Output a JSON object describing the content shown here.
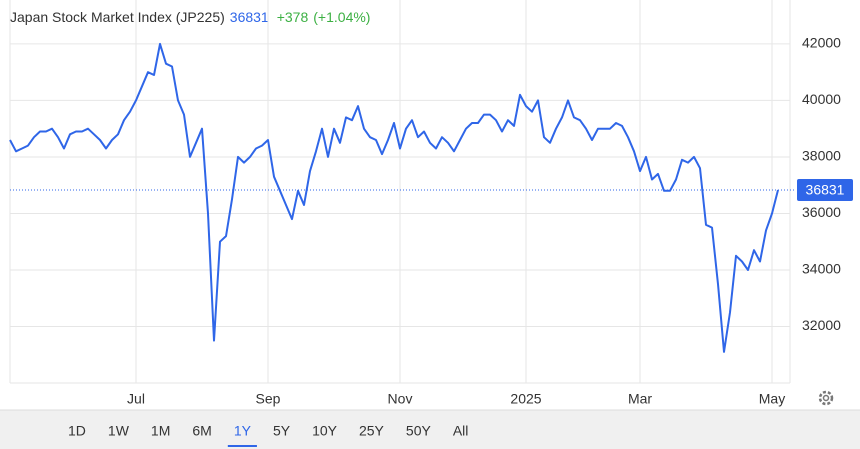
{
  "chart_data": {
    "type": "line",
    "title": "Japan Stock Market Index (JP225)",
    "last_value": 36831,
    "change": "+378",
    "change_percent": "(+1.04%)",
    "categories": [
      null,
      null,
      null,
      null,
      null,
      null,
      null,
      null,
      null,
      null,
      null,
      null,
      null,
      null,
      null,
      null,
      null,
      null,
      null,
      null,
      null,
      "Jul",
      null,
      null,
      null,
      null,
      null,
      null,
      null,
      null,
      null,
      null,
      null,
      null,
      null,
      null,
      null,
      null,
      null,
      null,
      null,
      null,
      null,
      "Sep",
      null,
      null,
      null,
      null,
      null,
      null,
      null,
      null,
      null,
      null,
      null,
      null,
      null,
      null,
      null,
      null,
      null,
      null,
      null,
      null,
      null,
      "Nov",
      null,
      null,
      null,
      null,
      null,
      null,
      null,
      null,
      null,
      null,
      null,
      null,
      null,
      null,
      null,
      null,
      null,
      null,
      null,
      null,
      "2025",
      null,
      null,
      null,
      null,
      null,
      null,
      null,
      null,
      null,
      null,
      null,
      null,
      null,
      null,
      null,
      null,
      null,
      null,
      "Mar",
      null,
      null,
      null,
      null,
      null,
      null,
      null,
      null,
      null,
      null,
      null,
      null,
      null,
      null,
      null,
      null,
      null,
      null,
      null,
      null,
      null,
      "May",
      null
    ],
    "series": [
      {
        "name": "JP225",
        "color": "#2f66e8",
        "values": [
          38600,
          38200,
          38300,
          38400,
          38700,
          38900,
          38900,
          39000,
          38700,
          38300,
          38800,
          38900,
          38900,
          39000,
          38800,
          38600,
          38300,
          38600,
          38800,
          39300,
          39600,
          40000,
          40500,
          41000,
          40900,
          42000,
          41300,
          41200,
          40000,
          39500,
          38000,
          38500,
          39000,
          36000,
          31500,
          35000,
          35200,
          36500,
          38000,
          37800,
          38000,
          38300,
          38400,
          38600,
          37300,
          36800,
          36300,
          35800,
          36800,
          36300,
          37500,
          38200,
          39000,
          38000,
          39000,
          38500,
          39400,
          39300,
          39800,
          39000,
          38700,
          38600,
          38100,
          38600,
          39200,
          38300,
          39000,
          39300,
          38700,
          38900,
          38500,
          38300,
          38700,
          38500,
          38200,
          38600,
          39000,
          39200,
          39200,
          39500,
          39500,
          39300,
          38900,
          39300,
          39100,
          40200,
          39800,
          39600,
          40000,
          38700,
          38500,
          39000,
          39400,
          40000,
          39400,
          39300,
          39000,
          38600,
          39000,
          39000,
          39000,
          39200,
          39100,
          38700,
          38200,
          37500,
          38000,
          37200,
          37400,
          36800,
          36800,
          37200,
          37900,
          37800,
          38000,
          37600,
          35600,
          35500,
          33500,
          31100,
          32500,
          34500,
          34300,
          34000,
          34700,
          34300,
          35400,
          36000,
          36831
        ]
      }
    ],
    "ylim": [
      30000,
      43200
    ],
    "yticks": [
      32000,
      34000,
      36000,
      38000,
      40000,
      42000
    ],
    "grid": true
  },
  "range_buttons": [
    "1D",
    "1W",
    "1M",
    "6M",
    "1Y",
    "5Y",
    "10Y",
    "25Y",
    "50Y",
    "All"
  ],
  "selected_range": "1Y"
}
